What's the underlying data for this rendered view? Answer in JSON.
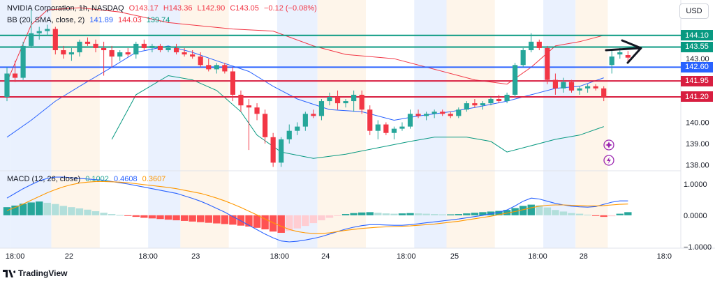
{
  "header": {
    "symbol_line": [
      "NVIDIA Corporation, 1h, NASDAQ",
      "O143.17",
      "H143.36",
      "L142.90",
      "C143.05",
      "−0.12 (−0.08%)"
    ],
    "bb_line": [
      "BB (20, SMA, close, 2)",
      "141.89",
      "144.03",
      "139.74"
    ],
    "macd_line": [
      "MACD (12, 26, close)",
      "0.1002",
      "0.4608",
      "0.3607"
    ],
    "currency_button": "USD",
    "logo_text": "TradingView"
  },
  "colors": {
    "up": "#26a69a",
    "down": "#f23645",
    "bb_basis": "#2962ff",
    "bb_upper": "#f23645",
    "bb_lower": "#089981",
    "macd_line": "#2962ff",
    "signal_line": "#ff9800",
    "session_blue": "#e3ecfd",
    "session_orange": "#fdf1e3",
    "level_green": "#089981",
    "level_blue": "#2962ff",
    "level_red": "#d81e40"
  },
  "chart_data": {
    "type": "candlestick",
    "price_axis": {
      "ticks": [
        "143.00",
        "140.00",
        "139.00",
        "138.00"
      ],
      "range": [
        137.75,
        145.7
      ]
    },
    "macd_axis": {
      "ticks": [
        "1.0000",
        "0.0000",
        "−1.0000"
      ],
      "range": [
        -1.05,
        1.4
      ]
    },
    "time_axis_labels": [
      {
        "label": "18:00",
        "index": 1
      },
      {
        "label": "22",
        "index": 7.7
      },
      {
        "label": "18:00",
        "index": 17.5
      },
      {
        "label": "23",
        "index": 23.4
      },
      {
        "label": "18:00",
        "index": 33.8
      },
      {
        "label": "24",
        "index": 39.5
      },
      {
        "label": "18:00",
        "index": 49.5
      },
      {
        "label": "25",
        "index": 55.5
      },
      {
        "label": "18:00",
        "index": 65.8
      },
      {
        "label": "28",
        "index": 71.5
      },
      {
        "label": "18:0",
        "index": 81.5
      }
    ],
    "levels": [
      {
        "value": 144.1,
        "label": "144.10",
        "color": "#089981"
      },
      {
        "value": 143.55,
        "label": "143.55",
        "color": "#089981"
      },
      {
        "value": 142.6,
        "label": "142.60",
        "color": "#2962ff"
      },
      {
        "value": 141.95,
        "label": "141.95",
        "color": "#d81e40"
      },
      {
        "value": 141.2,
        "label": "141.20",
        "color": "#d81e40"
      }
    ],
    "candles": [
      {
        "o": 141.2,
        "h": 142.6,
        "l": 141.0,
        "c": 142.3
      },
      {
        "o": 142.3,
        "h": 142.9,
        "l": 141.9,
        "c": 142.1
      },
      {
        "o": 142.1,
        "h": 143.8,
        "l": 142.0,
        "c": 143.6
      },
      {
        "o": 143.6,
        "h": 145.3,
        "l": 143.5,
        "c": 144.2
      },
      {
        "o": 144.2,
        "h": 144.5,
        "l": 143.9,
        "c": 144.3
      },
      {
        "o": 144.3,
        "h": 144.6,
        "l": 144.1,
        "c": 144.4
      },
      {
        "o": 144.4,
        "h": 144.5,
        "l": 143.2,
        "c": 143.4
      },
      {
        "o": 143.4,
        "h": 143.6,
        "l": 143.0,
        "c": 143.2
      },
      {
        "o": 143.2,
        "h": 143.5,
        "l": 142.9,
        "c": 143.3
      },
      {
        "o": 143.3,
        "h": 143.9,
        "l": 143.1,
        "c": 143.8
      },
      {
        "o": 143.8,
        "h": 144.0,
        "l": 143.6,
        "c": 143.7
      },
      {
        "o": 143.7,
        "h": 143.9,
        "l": 143.3,
        "c": 143.5
      },
      {
        "o": 143.5,
        "h": 143.8,
        "l": 142.2,
        "c": 143.4
      },
      {
        "o": 143.4,
        "h": 143.6,
        "l": 142.6,
        "c": 143.1
      },
      {
        "o": 143.1,
        "h": 143.4,
        "l": 142.9,
        "c": 143.3
      },
      {
        "o": 143.3,
        "h": 143.5,
        "l": 143.1,
        "c": 143.2
      },
      {
        "o": 143.2,
        "h": 143.8,
        "l": 143.0,
        "c": 143.7
      },
      {
        "o": 143.7,
        "h": 143.9,
        "l": 143.4,
        "c": 143.5
      },
      {
        "o": 143.5,
        "h": 143.7,
        "l": 143.3,
        "c": 143.6
      },
      {
        "o": 143.6,
        "h": 143.7,
        "l": 143.3,
        "c": 143.4
      },
      {
        "o": 143.4,
        "h": 143.6,
        "l": 143.3,
        "c": 143.5
      },
      {
        "o": 143.5,
        "h": 143.7,
        "l": 143.2,
        "c": 143.3
      },
      {
        "o": 143.3,
        "h": 143.5,
        "l": 143.1,
        "c": 143.2
      },
      {
        "o": 143.2,
        "h": 143.4,
        "l": 143.0,
        "c": 143.1
      },
      {
        "o": 143.1,
        "h": 143.3,
        "l": 142.6,
        "c": 142.7
      },
      {
        "o": 142.7,
        "h": 143.0,
        "l": 142.4,
        "c": 142.5
      },
      {
        "o": 142.5,
        "h": 142.8,
        "l": 142.3,
        "c": 142.7
      },
      {
        "o": 142.7,
        "h": 142.8,
        "l": 142.3,
        "c": 142.4
      },
      {
        "o": 142.4,
        "h": 142.6,
        "l": 141.0,
        "c": 141.3
      },
      {
        "o": 141.3,
        "h": 141.5,
        "l": 140.5,
        "c": 140.8
      },
      {
        "o": 140.8,
        "h": 141.1,
        "l": 138.7,
        "c": 140.7
      },
      {
        "o": 140.7,
        "h": 140.9,
        "l": 140.1,
        "c": 140.4
      },
      {
        "o": 140.4,
        "h": 140.6,
        "l": 139.0,
        "c": 139.3
      },
      {
        "o": 139.3,
        "h": 139.5,
        "l": 137.9,
        "c": 138.1
      },
      {
        "o": 138.1,
        "h": 139.3,
        "l": 137.9,
        "c": 139.2
      },
      {
        "o": 139.2,
        "h": 139.9,
        "l": 139.0,
        "c": 139.6
      },
      {
        "o": 139.6,
        "h": 140.0,
        "l": 139.4,
        "c": 139.8
      },
      {
        "o": 139.8,
        "h": 140.5,
        "l": 139.6,
        "c": 140.4
      },
      {
        "o": 140.4,
        "h": 140.6,
        "l": 140.2,
        "c": 140.3
      },
      {
        "o": 140.3,
        "h": 141.1,
        "l": 140.1,
        "c": 141.0
      },
      {
        "o": 141.0,
        "h": 141.4,
        "l": 140.8,
        "c": 141.2
      },
      {
        "o": 141.2,
        "h": 141.5,
        "l": 140.6,
        "c": 140.9
      },
      {
        "o": 140.9,
        "h": 141.1,
        "l": 140.7,
        "c": 141.0
      },
      {
        "o": 141.0,
        "h": 141.5,
        "l": 140.5,
        "c": 141.3
      },
      {
        "o": 141.3,
        "h": 141.5,
        "l": 140.4,
        "c": 140.6
      },
      {
        "o": 140.6,
        "h": 140.8,
        "l": 139.4,
        "c": 139.6
      },
      {
        "o": 139.6,
        "h": 140.1,
        "l": 139.2,
        "c": 139.9
      },
      {
        "o": 139.9,
        "h": 140.0,
        "l": 139.4,
        "c": 139.5
      },
      {
        "o": 139.5,
        "h": 139.8,
        "l": 139.2,
        "c": 139.7
      },
      {
        "o": 139.7,
        "h": 140.0,
        "l": 139.6,
        "c": 139.8
      },
      {
        "o": 139.8,
        "h": 140.6,
        "l": 139.7,
        "c": 140.4
      },
      {
        "o": 140.4,
        "h": 140.6,
        "l": 140.2,
        "c": 140.3
      },
      {
        "o": 140.3,
        "h": 140.5,
        "l": 140.1,
        "c": 140.4
      },
      {
        "o": 140.4,
        "h": 140.6,
        "l": 140.2,
        "c": 140.5
      },
      {
        "o": 140.5,
        "h": 140.6,
        "l": 140.3,
        "c": 140.4
      },
      {
        "o": 140.4,
        "h": 140.5,
        "l": 140.2,
        "c": 140.3
      },
      {
        "o": 140.3,
        "h": 140.7,
        "l": 140.2,
        "c": 140.6
      },
      {
        "o": 140.6,
        "h": 141.0,
        "l": 140.5,
        "c": 140.9
      },
      {
        "o": 140.9,
        "h": 141.1,
        "l": 140.7,
        "c": 140.8
      },
      {
        "o": 140.8,
        "h": 141.0,
        "l": 140.6,
        "c": 140.9
      },
      {
        "o": 140.9,
        "h": 141.2,
        "l": 140.8,
        "c": 141.1
      },
      {
        "o": 141.1,
        "h": 141.3,
        "l": 140.9,
        "c": 141.0
      },
      {
        "o": 141.0,
        "h": 141.4,
        "l": 140.9,
        "c": 141.3
      },
      {
        "o": 141.3,
        "h": 142.8,
        "l": 141.2,
        "c": 142.7
      },
      {
        "o": 142.7,
        "h": 143.5,
        "l": 142.6,
        "c": 143.4
      },
      {
        "o": 143.4,
        "h": 144.2,
        "l": 143.3,
        "c": 143.8
      },
      {
        "o": 143.8,
        "h": 143.9,
        "l": 143.4,
        "c": 143.5
      },
      {
        "o": 143.5,
        "h": 143.6,
        "l": 141.8,
        "c": 142.0
      },
      {
        "o": 142.0,
        "h": 142.3,
        "l": 141.3,
        "c": 141.6
      },
      {
        "o": 141.6,
        "h": 142.1,
        "l": 141.4,
        "c": 141.9
      },
      {
        "o": 141.9,
        "h": 142.0,
        "l": 141.4,
        "c": 141.5
      },
      {
        "o": 141.5,
        "h": 141.7,
        "l": 141.3,
        "c": 141.6
      },
      {
        "o": 141.6,
        "h": 141.8,
        "l": 141.4,
        "c": 141.7
      },
      {
        "o": 141.7,
        "h": 141.8,
        "l": 141.5,
        "c": 141.6
      },
      {
        "o": 141.6,
        "h": 141.7,
        "l": 141.0,
        "c": 141.2
      },
      {
        "o": 142.7,
        "h": 143.4,
        "l": 142.3,
        "c": 143.1
      },
      {
        "o": 143.2,
        "h": 143.5,
        "l": 143.0,
        "c": 143.3
      },
      {
        "o": 143.17,
        "h": 143.36,
        "l": 142.9,
        "c": 143.05
      }
    ],
    "macd_histogram": [
      0.26,
      0.31,
      0.37,
      0.41,
      0.44,
      0.4,
      0.36,
      0.3,
      0.26,
      0.22,
      0.18,
      0.13,
      0.08,
      0.04,
      0.01,
      -0.02,
      -0.05,
      -0.08,
      -0.1,
      -0.12,
      -0.14,
      -0.16,
      -0.18,
      -0.2,
      -0.22,
      -0.24,
      -0.26,
      -0.28,
      -0.3,
      -0.33,
      -0.36,
      -0.4,
      -0.45,
      -0.52,
      -0.56,
      -0.5,
      -0.42,
      -0.34,
      -0.25,
      -0.16,
      -0.08,
      -0.01,
      0.04,
      0.07,
      0.09,
      0.1,
      0.08,
      0.06,
      0.05,
      0.06,
      0.07,
      0.06,
      0.05,
      0.04,
      0.03,
      0.03,
      0.04,
      0.06,
      0.08,
      0.1,
      0.12,
      0.14,
      0.17,
      0.23,
      0.3,
      0.34,
      0.32,
      0.25,
      0.17,
      0.12,
      0.07,
      0.05,
      0.02,
      -0.02,
      -0.05,
      -0.03,
      0.05,
      0.1
    ],
    "macd_series": [
      {
        "name": "MACD",
        "color": "#2962ff",
        "values": [
          0.55,
          0.7,
          0.85,
          0.98,
          1.1,
          1.18,
          1.22,
          1.22,
          1.2,
          1.18,
          1.16,
          1.14,
          1.12,
          1.08,
          1.04,
          1.0,
          0.95,
          0.9,
          0.85,
          0.8,
          0.75,
          0.7,
          0.62,
          0.54,
          0.45,
          0.34,
          0.22,
          0.1,
          -0.04,
          -0.18,
          -0.32,
          -0.46,
          -0.6,
          -0.72,
          -0.82,
          -0.85,
          -0.83,
          -0.79,
          -0.74,
          -0.68,
          -0.6,
          -0.52,
          -0.44,
          -0.38,
          -0.33,
          -0.3,
          -0.3,
          -0.31,
          -0.32,
          -0.32,
          -0.3,
          -0.27,
          -0.24,
          -0.21,
          -0.18,
          -0.15,
          -0.12,
          -0.08,
          -0.04,
          0.0,
          0.05,
          0.1,
          0.17,
          0.3,
          0.45,
          0.55,
          0.52,
          0.45,
          0.38,
          0.33,
          0.29,
          0.27,
          0.26,
          0.28,
          0.35,
          0.42,
          0.46,
          0.46
        ]
      },
      {
        "name": "Signal",
        "color": "#ff9800",
        "values": [
          0.15,
          0.25,
          0.36,
          0.48,
          0.6,
          0.72,
          0.82,
          0.91,
          0.98,
          1.03,
          1.06,
          1.08,
          1.08,
          1.07,
          1.06,
          1.04,
          1.01,
          0.98,
          0.95,
          0.92,
          0.89,
          0.85,
          0.8,
          0.75,
          0.7,
          0.63,
          0.55,
          0.46,
          0.36,
          0.25,
          0.13,
          0.01,
          -0.12,
          -0.24,
          -0.35,
          -0.45,
          -0.52,
          -0.56,
          -0.58,
          -0.58,
          -0.56,
          -0.52,
          -0.48,
          -0.45,
          -0.42,
          -0.4,
          -0.38,
          -0.37,
          -0.36,
          -0.35,
          -0.34,
          -0.32,
          -0.3,
          -0.28,
          -0.25,
          -0.22,
          -0.19,
          -0.15,
          -0.11,
          -0.07,
          -0.03,
          0.02,
          0.07,
          0.12,
          0.18,
          0.24,
          0.29,
          0.32,
          0.33,
          0.33,
          0.32,
          0.31,
          0.3,
          0.3,
          0.31,
          0.33,
          0.35,
          0.36
        ]
      }
    ],
    "bollinger": {
      "upper": [
        [
          0,
          141.9
        ],
        [
          3,
          144.6
        ],
        [
          5,
          145.3
        ],
        [
          9,
          145.4
        ],
        [
          14,
          145.2
        ],
        [
          20,
          144.7
        ],
        [
          28,
          144.4
        ],
        [
          33,
          144.3
        ],
        [
          38,
          143.6
        ],
        [
          42,
          143.2
        ],
        [
          48,
          143.0
        ],
        [
          53,
          142.5
        ],
        [
          58,
          142.0
        ],
        [
          62,
          141.8
        ],
        [
          65,
          142.6
        ],
        [
          68,
          143.6
        ],
        [
          71,
          143.8
        ],
        [
          74,
          144.1
        ]
      ],
      "basis": [
        [
          0,
          139.3
        ],
        [
          3,
          140.1
        ],
        [
          6,
          141.0
        ],
        [
          9,
          141.7
        ],
        [
          13,
          142.6
        ],
        [
          16,
          143.3
        ],
        [
          20,
          143.6
        ],
        [
          23,
          143.3
        ],
        [
          26,
          142.9
        ],
        [
          30,
          142.4
        ],
        [
          33,
          141.7
        ],
        [
          36,
          141.1
        ],
        [
          40,
          140.6
        ],
        [
          44,
          140.5
        ],
        [
          48,
          140.1
        ],
        [
          51,
          140.3
        ],
        [
          55,
          140.5
        ],
        [
          58,
          140.7
        ],
        [
          62,
          141.0
        ],
        [
          65,
          141.3
        ],
        [
          68,
          141.6
        ],
        [
          71,
          141.7
        ],
        [
          74,
          142.1
        ]
      ],
      "lower": [
        [
          13,
          139.2
        ],
        [
          16,
          141.3
        ],
        [
          20,
          142.2
        ],
        [
          23,
          142.0
        ],
        [
          26,
          141.5
        ],
        [
          29,
          140.5
        ],
        [
          31,
          139.4
        ],
        [
          34,
          138.6
        ],
        [
          38,
          138.3
        ],
        [
          42,
          138.5
        ],
        [
          46,
          138.8
        ],
        [
          50,
          139.1
        ],
        [
          53,
          139.3
        ],
        [
          57,
          139.3
        ],
        [
          60,
          139.1
        ],
        [
          62,
          138.6
        ],
        [
          65,
          138.9
        ],
        [
          68,
          139.2
        ],
        [
          71,
          139.4
        ],
        [
          74,
          139.8
        ]
      ]
    },
    "session_bands": [
      {
        "from": -1,
        "to": 1,
        "type": "blue"
      },
      {
        "from": 1,
        "to": 6,
        "type": "blue"
      },
      {
        "from": 6,
        "to": 12,
        "type": "orange"
      },
      {
        "from": 18,
        "to": 22,
        "type": "blue"
      },
      {
        "from": 22,
        "to": 28,
        "type": "orange"
      },
      {
        "from": 34,
        "to": 39,
        "type": "blue"
      },
      {
        "from": 39,
        "to": 45,
        "type": "orange"
      },
      {
        "from": 51,
        "to": 55,
        "type": "blue"
      },
      {
        "from": 55,
        "to": 61,
        "type": "orange"
      },
      {
        "from": 67,
        "to": 71,
        "type": "blue"
      },
      {
        "from": 71,
        "to": 75,
        "type": "orange"
      }
    ]
  }
}
